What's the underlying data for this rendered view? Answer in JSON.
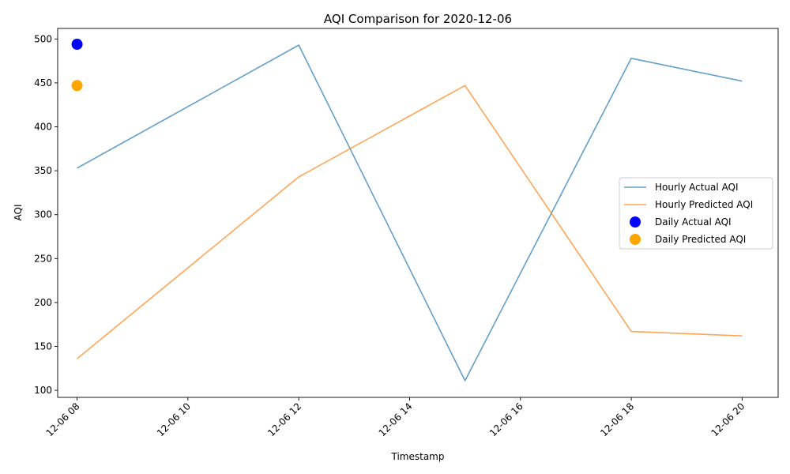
{
  "chart_data": {
    "type": "line",
    "title": "AQI Comparison for 2020-12-06",
    "xlabel": "Timestamp",
    "ylabel": "AQI",
    "x_ticks": [
      "12-06 08",
      "12-06 10",
      "12-06 12",
      "12-06 14",
      "12-06 16",
      "12-06 18",
      "12-06 20"
    ],
    "y_ticks": [
      100,
      150,
      200,
      250,
      300,
      350,
      400,
      450,
      500
    ],
    "xlim_hours": [
      7.65,
      20.65
    ],
    "ylim": [
      92,
      512
    ],
    "grid": false,
    "legend_position": "center-right",
    "series": [
      {
        "name": "Hourly Actual AQI",
        "kind": "line",
        "color": "#1f77b4",
        "x_hours": [
          8,
          12,
          15,
          18,
          20
        ],
        "values": [
          353,
          493,
          111,
          478,
          452
        ]
      },
      {
        "name": "Hourly Predicted AQI",
        "kind": "line",
        "color": "#ff7f0e",
        "x_hours": [
          8,
          12,
          15,
          18,
          20
        ],
        "values": [
          136,
          343,
          447,
          167,
          162
        ]
      },
      {
        "name": "Daily Actual AQI",
        "kind": "scatter",
        "color": "#0000ff",
        "x_hours": [
          8
        ],
        "values": [
          494
        ]
      },
      {
        "name": "Daily Predicted AQI",
        "kind": "scatter",
        "color": "#ffa500",
        "x_hours": [
          8
        ],
        "values": [
          447
        ]
      }
    ]
  }
}
